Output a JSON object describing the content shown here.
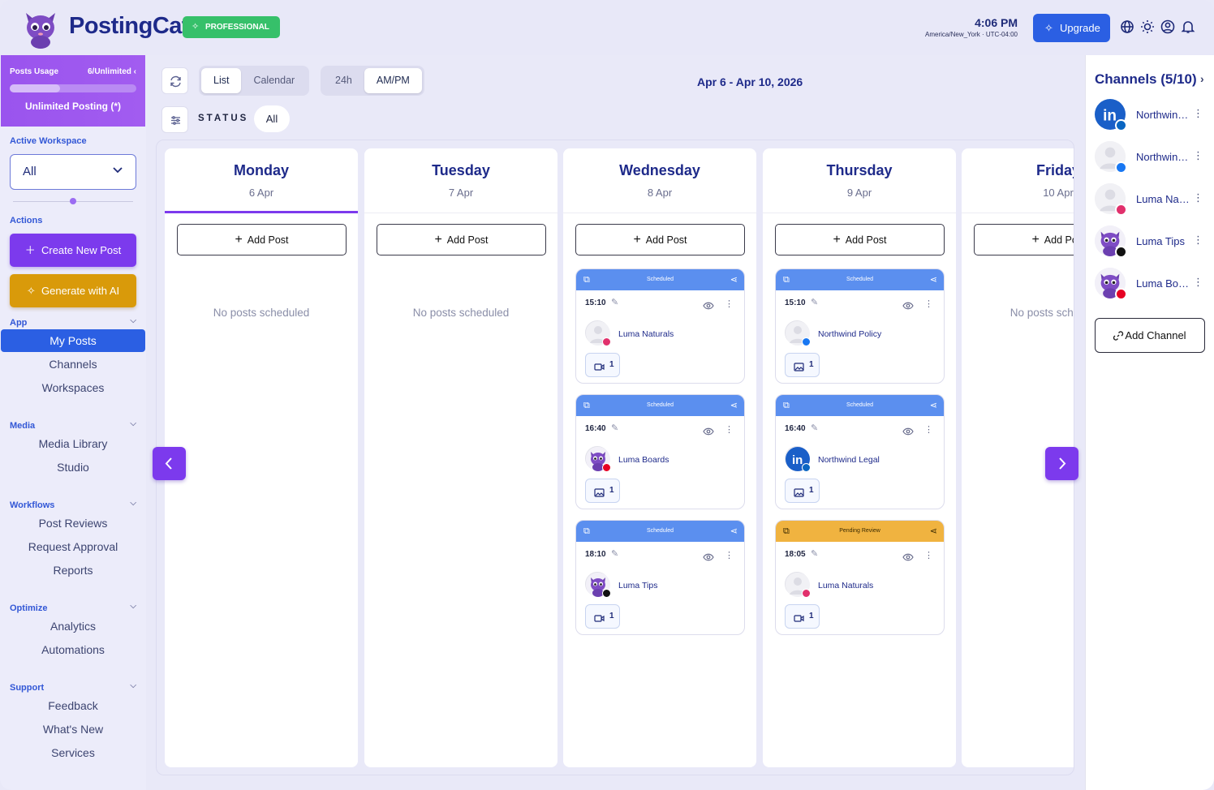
{
  "header": {
    "brand": "PostingCat",
    "plan_badge": "PROFESSIONAL",
    "time": "4:06 PM",
    "timezone": "America/New_York · UTC-04:00",
    "upgrade_label": "Upgrade",
    "icons": [
      "globe-icon",
      "sun-icon",
      "user-circle-icon",
      "bell-icon"
    ]
  },
  "sidebar": {
    "usage": {
      "label": "Posts Usage",
      "count": "6/Unlimited",
      "progress_fraction": 0.4,
      "unlimited_label": "Unlimited Posting (*)"
    },
    "workspace_label": "Active Workspace",
    "workspace_value": "All",
    "actions_label": "Actions",
    "create_label": "Create New Post",
    "ai_label": "Generate with AI",
    "groups": [
      {
        "title": "App",
        "items": [
          "My Posts",
          "Channels",
          "Workspaces"
        ]
      },
      {
        "title": "Media",
        "items": [
          "Media Library",
          "Studio"
        ]
      },
      {
        "title": "Workflows",
        "items": [
          "Post Reviews",
          "Request Approval",
          "Reports"
        ]
      },
      {
        "title": "Optimize",
        "items": [
          "Analytics",
          "Automations"
        ]
      },
      {
        "title": "Support",
        "items": [
          "Feedback",
          "What's New",
          "Services"
        ]
      }
    ],
    "active_item": "My Posts"
  },
  "toolbar": {
    "view_options": [
      "List",
      "Calendar"
    ],
    "view_selected": "List",
    "time_options": [
      "24h",
      "AM/PM"
    ],
    "time_selected": "AM/PM",
    "date_range": "Apr 6 - Apr 10, 2026",
    "status_label": "STATUS",
    "status_value": "All"
  },
  "calendar": {
    "add_post_label": "Add Post",
    "no_posts_label": "No posts scheduled",
    "days": [
      {
        "name": "Monday",
        "date": "6 Apr",
        "active": true,
        "posts": []
      },
      {
        "name": "Tuesday",
        "date": "7 Apr",
        "posts": []
      },
      {
        "name": "Wednesday",
        "date": "8 Apr",
        "posts": [
          {
            "status": "Scheduled",
            "time": "15:10",
            "channel": "Luma Naturals",
            "network": "instagram",
            "media_type": "video",
            "media_count": "1"
          },
          {
            "status": "Scheduled",
            "time": "16:40",
            "channel": "Luma Boards",
            "network": "pinterest",
            "media_type": "image",
            "media_count": "1"
          },
          {
            "status": "Scheduled",
            "time": "18:10",
            "channel": "Luma Tips",
            "network": "tiktok",
            "media_type": "video",
            "media_count": "1"
          }
        ]
      },
      {
        "name": "Thursday",
        "date": "9 Apr",
        "posts": [
          {
            "status": "Scheduled",
            "time": "15:10",
            "channel": "Northwind Policy",
            "network": "facebook",
            "media_type": "image",
            "media_count": "1"
          },
          {
            "status": "Scheduled",
            "time": "16:40",
            "channel": "Northwind Legal",
            "network": "linkedin",
            "media_type": "image",
            "media_count": "1"
          },
          {
            "status": "Pending Review",
            "time": "18:05",
            "channel": "Luma Naturals",
            "network": "instagram",
            "media_type": "video",
            "media_count": "1"
          }
        ]
      },
      {
        "name": "Friday",
        "date": "10 Apr",
        "posts": []
      }
    ]
  },
  "channels_panel": {
    "title": "Channels (5/10)",
    "items": [
      {
        "name": "Northwind Legal",
        "network": "linkedin"
      },
      {
        "name": "Northwind Policy",
        "network": "facebook"
      },
      {
        "name": "Luma Naturals",
        "network": "instagram"
      },
      {
        "name": "Luma Tips",
        "network": "tiktok"
      },
      {
        "name": "Luma Boards",
        "network": "pinterest"
      }
    ],
    "add_label": "Add Channel"
  },
  "colors": {
    "accent": "#7c3aed",
    "primary": "#2b5fe3",
    "scheduled": "#5b8fef",
    "pending": "#f0b340",
    "ai": "#d99a0a",
    "pro": "#36c06a"
  }
}
